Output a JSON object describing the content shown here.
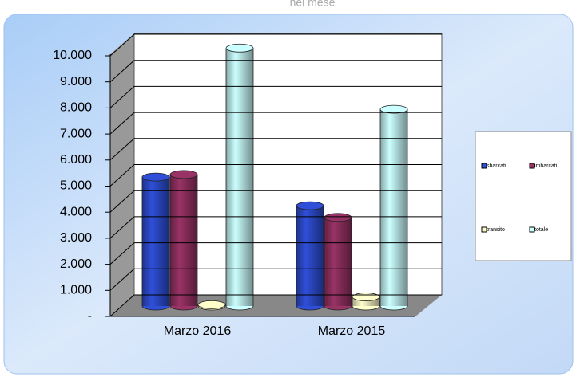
{
  "chart_data": {
    "type": "cylinder-bar",
    "title": "nel mese",
    "categories": [
      "Marzo 2016",
      "Marzo 2015"
    ],
    "series": [
      {
        "name": "sbarcati",
        "color": "#2f4fd8",
        "values": [
          4950,
          3850
        ]
      },
      {
        "name": "imbarcati",
        "color": "#993366",
        "values": [
          5050,
          3400
        ]
      },
      {
        "name": "transito",
        "color": "#ffffcc",
        "values": [
          50,
          350
        ]
      },
      {
        "name": "totale",
        "color": "#ccffff",
        "values": [
          9900,
          7550
        ]
      }
    ],
    "ylim": [
      0,
      10000
    ],
    "yticks": [
      {
        "value": 0,
        "label": "-"
      },
      {
        "value": 1000,
        "label": "1.000"
      },
      {
        "value": 2000,
        "label": "2.000"
      },
      {
        "value": 3000,
        "label": "3.000"
      },
      {
        "value": 4000,
        "label": "4.000"
      },
      {
        "value": 5000,
        "label": "5.000"
      },
      {
        "value": 6000,
        "label": "6.000"
      },
      {
        "value": 7000,
        "label": "7.000"
      },
      {
        "value": 8000,
        "label": "8.000"
      },
      {
        "value": 9000,
        "label": "9.000"
      },
      {
        "value": 10000,
        "label": "10.000"
      }
    ],
    "grid": true,
    "legend": "right"
  }
}
